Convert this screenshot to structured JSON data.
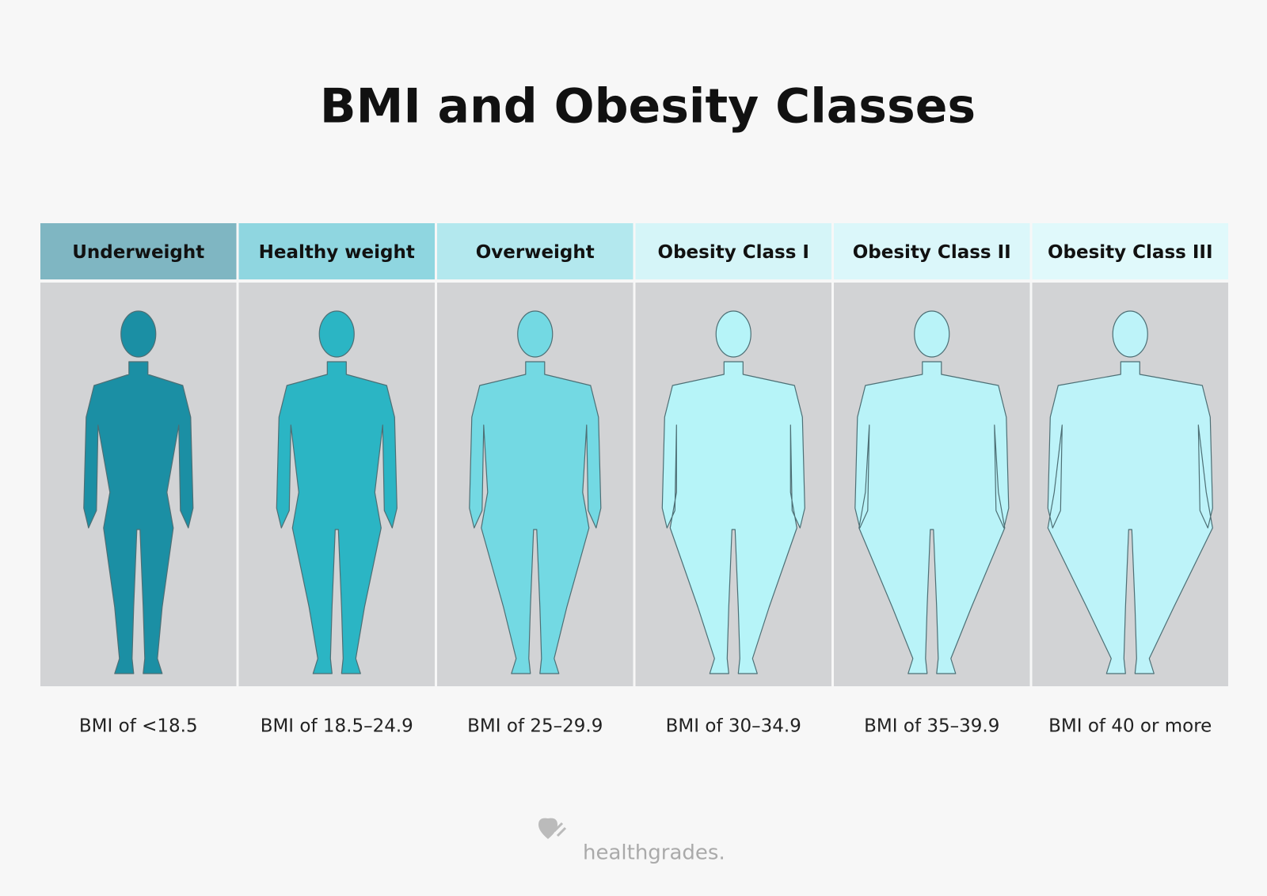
{
  "title": "BMI and Obesity Classes",
  "classes": [
    {
      "label": "Underweight",
      "range": "BMI of <18.5",
      "header_color": "#7fb6c2",
      "body_color": "#1b8fa4"
    },
    {
      "label": "Healthy weight",
      "range": "BMI of 18.5–24.9",
      "header_color": "#8fd6e0",
      "body_color": "#2bb5c4"
    },
    {
      "label": "Overweight",
      "range": "BMI of 25–29.9",
      "header_color": "#b3e8ee",
      "body_color": "#73d9e3"
    },
    {
      "label": "Obesity Class I",
      "range": "BMI of 30–34.9",
      "header_color": "#d5f5f8",
      "body_color": "#b6f4f8"
    },
    {
      "label": "Obesity Class II",
      "range": "BMI of 35–39.9",
      "header_color": "#dbf7fa",
      "body_color": "#b9f3f8"
    },
    {
      "label": "Obesity Class III",
      "range": "BMI of 40 or more",
      "header_color": "#e0f9fb",
      "body_color": "#bdf3f9"
    }
  ],
  "logo": "healthgrades."
}
